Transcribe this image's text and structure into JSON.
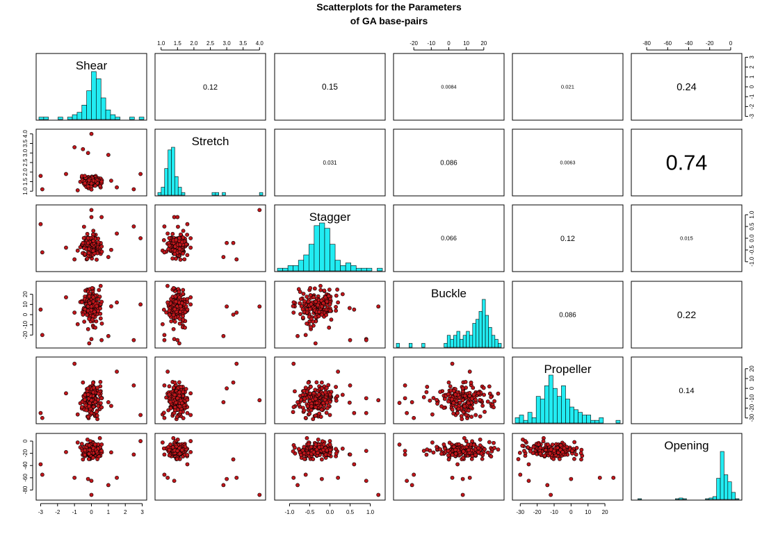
{
  "title": {
    "line1": "Scatterplots for the Parameters",
    "line2": "of GA base-pairs"
  },
  "chart_data": {
    "type": "scatter-matrix",
    "variables": [
      {
        "name": "Shear",
        "range": [
          -3.1,
          3.1
        ],
        "ticks": [
          -3,
          -2,
          -1,
          0,
          1,
          2,
          3
        ],
        "tick_labels": [
          "-3",
          "-2",
          "-1",
          "0",
          "1",
          "2",
          "3"
        ],
        "hist": [
          1,
          1,
          0,
          0,
          1,
          0,
          1,
          2,
          3,
          6,
          12,
          20,
          17,
          9,
          4,
          2,
          1,
          0,
          0,
          1,
          0,
          1
        ]
      },
      {
        "name": "Stretch",
        "range": [
          0.9,
          4.1
        ],
        "ticks": [
          1.0,
          1.5,
          2.0,
          2.5,
          3.0,
          3.5,
          4.0
        ],
        "tick_labels": [
          "1.0",
          "1.5",
          "2.0",
          "2.5",
          "3.0",
          "3.5",
          "4.0"
        ],
        "hist": [
          1,
          3,
          10,
          17,
          18,
          7,
          3,
          1,
          0,
          0,
          0,
          0,
          0,
          0,
          0,
          0,
          1,
          1,
          0,
          1,
          0,
          0,
          0,
          0,
          0,
          0,
          0,
          0,
          0,
          0,
          1
        ]
      },
      {
        "name": "Stagger",
        "range": [
          -1.3,
          1.3
        ],
        "ticks": [
          -1.0,
          -0.5,
          0.0,
          0.5,
          1.0
        ],
        "tick_labels": [
          "-1.0",
          "-0.5",
          "0.0",
          "0.5",
          "1.0"
        ],
        "hist": [
          1,
          1,
          2,
          2,
          4,
          6,
          10,
          17,
          18,
          16,
          10,
          4,
          2,
          3,
          2,
          1,
          1,
          1,
          0,
          1
        ]
      },
      {
        "name": "Buckle",
        "range": [
          -30,
          30
        ],
        "ticks": [
          -20,
          -10,
          0,
          10,
          20
        ],
        "tick_labels": [
          "-20",
          "-10",
          "0",
          "10",
          "20"
        ],
        "hist": [
          1,
          0,
          0,
          0,
          1,
          0,
          0,
          0,
          1,
          0,
          0,
          0,
          0,
          0,
          0,
          1,
          3,
          2,
          3,
          4,
          2,
          3,
          4,
          3,
          6,
          7,
          9,
          12,
          8,
          5,
          3,
          2,
          1
        ]
      },
      {
        "name": "Propeller",
        "range": [
          -33,
          29
        ],
        "ticks": [
          -30,
          -20,
          -10,
          0,
          10,
          20
        ],
        "tick_labels": [
          "-30",
          "-20",
          "-10",
          "0",
          "10",
          "20"
        ],
        "hist": [
          2,
          3,
          1,
          4,
          2,
          10,
          9,
          14,
          18,
          13,
          10,
          14,
          9,
          6,
          5,
          4,
          3,
          3,
          1,
          1,
          2,
          0,
          0,
          0,
          1
        ]
      },
      {
        "name": "Opening",
        "range": [
          -92,
          8
        ],
        "ticks": [
          -80,
          -60,
          -40,
          -20,
          0
        ],
        "tick_labels": [
          "-80",
          "-60",
          "-40",
          "-20",
          "0"
        ],
        "hist": [
          0,
          1,
          0,
          0,
          0,
          0,
          0,
          0,
          0,
          0,
          0,
          1,
          2,
          1,
          0,
          0,
          0,
          0,
          0,
          1,
          2,
          4,
          30,
          68,
          35,
          25,
          10,
          1
        ]
      }
    ],
    "correlations": [
      {
        "row": 0,
        "col": 1,
        "value": "0.12"
      },
      {
        "row": 0,
        "col": 2,
        "value": "0.15"
      },
      {
        "row": 0,
        "col": 3,
        "value": "0.0084"
      },
      {
        "row": 0,
        "col": 4,
        "value": "0.021"
      },
      {
        "row": 0,
        "col": 5,
        "value": "0.24"
      },
      {
        "row": 1,
        "col": 2,
        "value": "0.031"
      },
      {
        "row": 1,
        "col": 3,
        "value": "0.086"
      },
      {
        "row": 1,
        "col": 4,
        "value": "0.0063"
      },
      {
        "row": 1,
        "col": 5,
        "value": "0.74"
      },
      {
        "row": 2,
        "col": 3,
        "value": "0.066"
      },
      {
        "row": 2,
        "col": 4,
        "value": "0.12"
      },
      {
        "row": 2,
        "col": 5,
        "value": "0.015"
      },
      {
        "row": 3,
        "col": 4,
        "value": "0.086"
      },
      {
        "row": 3,
        "col": 5,
        "value": "0.22"
      },
      {
        "row": 4,
        "col": 5,
        "value": "0.14"
      }
    ],
    "points": {
      "n": 180,
      "seed": 7,
      "note_outliers": [
        [
          -3.0,
          1.8,
          0.6,
          5,
          -25,
          -38
        ],
        [
          -2.9,
          1.1,
          -0.6,
          -20,
          -30,
          -55
        ],
        [
          2.9,
          1.9,
          0.0,
          10,
          -27,
          0
        ],
        [
          2.5,
          1.1,
          0.5,
          -25,
          3,
          -22
        ],
        [
          -1.0,
          3.3,
          -0.9,
          2,
          25,
          -60
        ],
        [
          -0.5,
          3.2,
          -0.2,
          0,
          6,
          -30
        ],
        [
          0.0,
          4.0,
          1.2,
          8,
          -12,
          -88
        ],
        [
          1.0,
          2.9,
          -0.8,
          -21,
          -14,
          -72
        ],
        [
          -0.2,
          3.0,
          -0.2,
          8,
          0,
          -62
        ],
        [
          -1.5,
          1.9,
          -0.4,
          17,
          -5,
          -18
        ],
        [
          1.5,
          1.2,
          0.2,
          12,
          17,
          -60
        ],
        [
          0.0,
          1.4,
          0.9,
          -24,
          -25,
          -65
        ],
        [
          0.6,
          1.5,
          0.9,
          -25,
          -10,
          -16
        ]
      ]
    },
    "colors": {
      "hist_fill": "#22ecf2",
      "point_fill": "#c0161b",
      "stroke": "#000000"
    },
    "grid": false
  }
}
